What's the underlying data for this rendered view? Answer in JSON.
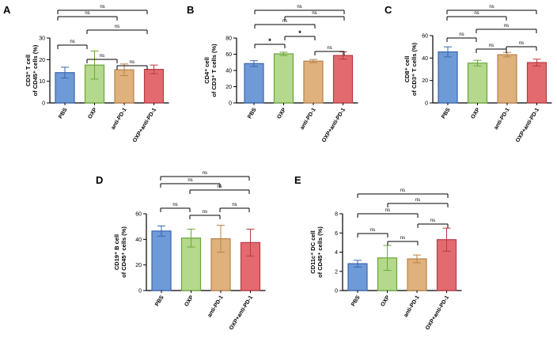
{
  "chart_data": [
    {
      "id": "A",
      "panel_label": "A",
      "type": "bar",
      "categories": [
        "PBS",
        "OXP",
        "anti-PD-1",
        "OXP+anti-PD-1"
      ],
      "values": [
        14,
        17.5,
        15.3,
        15.5
      ],
      "errors": [
        2.5,
        6.5,
        2.7,
        2
      ],
      "ylabel_line1": "CD3⁺ T cell",
      "ylabel_line2": "of CD45⁺ cells (%)",
      "ylim": [
        0,
        30
      ],
      "yticks": [
        "0",
        "10",
        "20",
        "30"
      ],
      "comparisons": [
        {
          "a": 0,
          "b": 3,
          "label": "ns"
        },
        {
          "a": 0,
          "b": 2,
          "label": "ns"
        },
        {
          "a": 1,
          "b": 3,
          "label": "ns"
        },
        {
          "a": 0,
          "b": 1,
          "label": "ns"
        },
        {
          "a": 1,
          "b": 2,
          "label": "ns"
        },
        {
          "a": 2,
          "b": 3,
          "label": "ns"
        }
      ]
    },
    {
      "id": "B",
      "panel_label": "B",
      "type": "bar",
      "categories": [
        "PBS",
        "OXP",
        "anti-PD-1",
        "OXP+anti-PD-1"
      ],
      "values": [
        48.5,
        60.5,
        51.5,
        58.5
      ],
      "errors": [
        3.5,
        2,
        2,
        4.5
      ],
      "ylabel_line1": "CD4⁺ cell",
      "ylabel_line2": "of CD3⁺ T cells (%)",
      "ylim": [
        0,
        80
      ],
      "yticks": [
        "0",
        "20",
        "40",
        "60",
        "80"
      ],
      "comparisons": [
        {
          "a": 0,
          "b": 3,
          "label": "ns"
        },
        {
          "a": 1,
          "b": 3,
          "label": "ns"
        },
        {
          "a": 0,
          "b": 2,
          "label": "ns"
        },
        {
          "a": 1,
          "b": 2,
          "label": "*"
        },
        {
          "a": 0,
          "b": 1,
          "label": "*"
        },
        {
          "a": 2,
          "b": 3,
          "label": "ns"
        }
      ]
    },
    {
      "id": "C",
      "panel_label": "C",
      "type": "bar",
      "categories": [
        "PBS",
        "OXP",
        "anti-PD-1",
        "OXP+anti-PD-1"
      ],
      "values": [
        45.5,
        35.5,
        43,
        36
      ],
      "errors": [
        4.5,
        2.5,
        2,
        3
      ],
      "ylabel_line1": "CD8⁺ cell",
      "ylabel_line2": "of CD3⁺ T cells (%)",
      "ylim": [
        0,
        60
      ],
      "yticks": [
        "0",
        "20",
        "40",
        "60"
      ],
      "comparisons": [
        {
          "a": 0,
          "b": 3,
          "label": "ns"
        },
        {
          "a": 0,
          "b": 2,
          "label": "ns"
        },
        {
          "a": 1,
          "b": 3,
          "label": "ns"
        },
        {
          "a": 0,
          "b": 1,
          "label": "ns"
        },
        {
          "a": 2,
          "b": 3,
          "label": "ns"
        },
        {
          "a": 1,
          "b": 2,
          "label": "ns"
        }
      ]
    },
    {
      "id": "D",
      "panel_label": "D",
      "type": "bar",
      "categories": [
        "PBS",
        "OXP",
        "anti-PD-1",
        "OXP+anti-PD-1"
      ],
      "values": [
        46.5,
        41,
        40.5,
        37.5
      ],
      "errors": [
        4,
        7,
        10.5,
        10.5
      ],
      "ylabel_line1": "CD19⁺ B cell",
      "ylabel_line2": "of CD45⁺ cells (%)",
      "ylim": [
        0,
        60
      ],
      "yticks": [
        "0",
        "20",
        "40",
        "60"
      ],
      "comparisons": [
        {
          "a": 0,
          "b": 3,
          "label": "ns"
        },
        {
          "a": 0,
          "b": 2,
          "label": "ns"
        },
        {
          "a": 1,
          "b": 3,
          "label": "ns"
        },
        {
          "a": 0,
          "b": 1,
          "label": "ns"
        },
        {
          "a": 1,
          "b": 2,
          "label": "ns"
        },
        {
          "a": 2,
          "b": 3,
          "label": "ns"
        }
      ]
    },
    {
      "id": "E",
      "panel_label": "E",
      "type": "bar",
      "categories": [
        "PBS",
        "OXP",
        "anti-PD-1",
        "OXP+anti-PD-1"
      ],
      "values": [
        2.8,
        3.4,
        3.3,
        5.3
      ],
      "errors": [
        0.35,
        1.3,
        0.4,
        1.2
      ],
      "ylabel_line1": "CD11c⁺ DC cell",
      "ylabel_line2": "of CD45⁺ cells (%)",
      "ylim": [
        0,
        8
      ],
      "yticks": [
        "0",
        "2",
        "4",
        "6",
        "8"
      ],
      "comparisons": [
        {
          "a": 0,
          "b": 3,
          "label": "ns"
        },
        {
          "a": 1,
          "b": 3,
          "label": "ns"
        },
        {
          "a": 0,
          "b": 2,
          "label": "ns"
        },
        {
          "a": 2,
          "b": 3,
          "label": "ns"
        },
        {
          "a": 0,
          "b": 1,
          "label": "ns"
        },
        {
          "a": 1,
          "b": 2,
          "label": "ns"
        }
      ]
    }
  ],
  "colors": {
    "fills": [
      "#6f9ad8",
      "#b4d88c",
      "#dfb17c",
      "#e36b6f"
    ],
    "strokes": [
      "#3a66ae",
      "#6aa83a",
      "#b9824a",
      "#b63a42"
    ],
    "axis": "#000000"
  }
}
